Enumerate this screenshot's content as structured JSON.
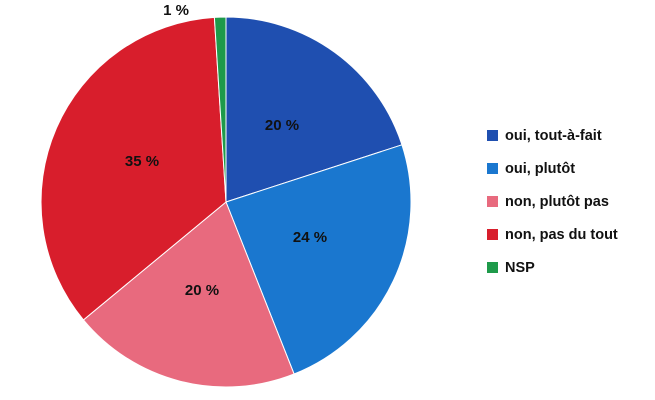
{
  "chart_data": {
    "type": "pie",
    "slices": [
      {
        "label": "oui, tout-à-fait",
        "value": 20,
        "display": "20 %",
        "color": "#1f4fb0"
      },
      {
        "label": "oui, plutôt",
        "value": 24,
        "display": "24 %",
        "color": "#1a77cf"
      },
      {
        "label": "non, plutôt pas",
        "value": 20,
        "display": "20 %",
        "color": "#e86a7e"
      },
      {
        "label": "non, pas du tout",
        "value": 35,
        "display": "35 %",
        "color": "#d81e2c"
      },
      {
        "label": "NSP",
        "value": 1,
        "display": "1 %",
        "color": "#1e9a4a"
      }
    ],
    "legend_position": "right"
  }
}
